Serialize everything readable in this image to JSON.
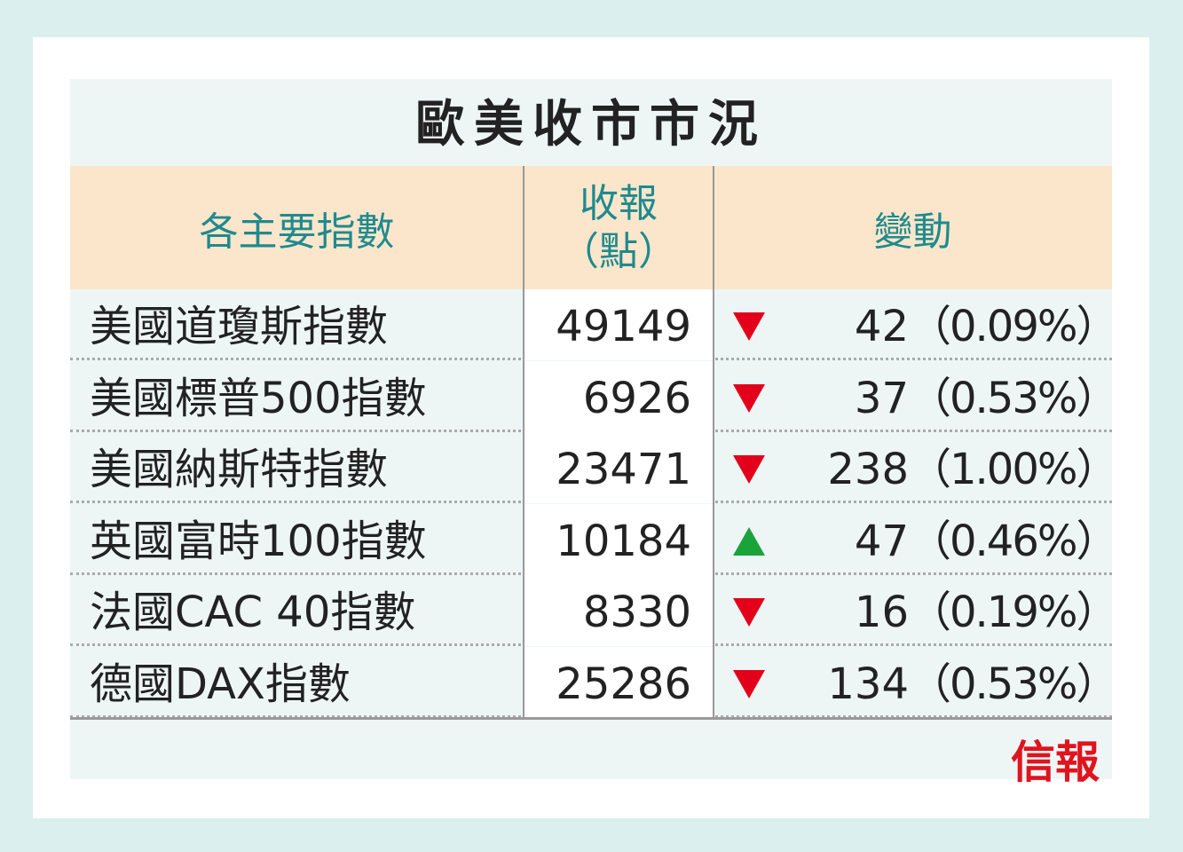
{
  "title": "歐美收市市況",
  "header": {
    "index": "各主要指數",
    "close": [
      "收報",
      "（點）"
    ],
    "change": "變動"
  },
  "rows": [
    {
      "name": "美國道瓊斯指數",
      "close": "49149",
      "direction": "down",
      "change": "42",
      "percent": "（0.09%）"
    },
    {
      "name": "美國標普500指數",
      "close": "6926",
      "direction": "down",
      "change": "37",
      "percent": "（0.53%）"
    },
    {
      "name": "美國納斯特指數",
      "close": "23471",
      "direction": "down",
      "change": "238",
      "percent": "（1.00%）"
    },
    {
      "name": "英國富時100指數",
      "close": "10184",
      "direction": "up",
      "change": "47",
      "percent": "（0.46%）"
    },
    {
      "name": "法國CAC 40指數",
      "close": "8330",
      "direction": "down",
      "change": "16",
      "percent": "（0.19%）"
    },
    {
      "name": "德國DAX指數",
      "close": "25286",
      "direction": "down",
      "change": "134",
      "percent": "（0.53%）"
    }
  ],
  "logo": "信報"
}
